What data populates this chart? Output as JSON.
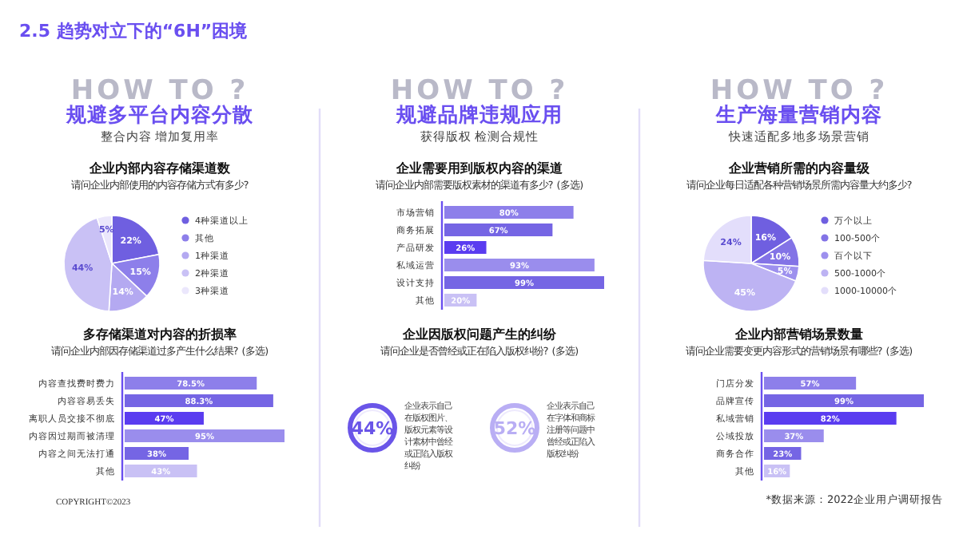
{
  "chart_data": [
    {
      "type": "pie",
      "title": "企业内部内容存储渠道数",
      "subtitle": "请问企业内部使用的内容存储方式有多少?",
      "annotations": [
        "HOW TO ?",
        "规避多平台内容分散",
        "整合内容 增加复用率",
        "2.5 趋势对立下的“6H”困境"
      ],
      "categories": [
        "4种渠道以上",
        "其他",
        "1种渠道",
        "2种渠道",
        "3种渠道"
      ],
      "values": [
        22,
        15,
        14,
        44,
        5
      ],
      "value_labels": [
        "22%",
        "15%",
        "14%",
        "44%",
        "5%"
      ],
      "colors": [
        "#6f5fe0",
        "#8d7fea",
        "#b4a9f1",
        "#c9c1f5",
        "#ebe7fc"
      ],
      "legend": "right"
    },
    {
      "type": "bar",
      "orientation": "horizontal",
      "title": "多存储渠道对内容的折损率",
      "subtitle": "请问企业内部因存储渠道过多产生什么结果? (多选)",
      "annotations": [
        "COPYRIGHT©2023"
      ],
      "categories": [
        "内容查找费时费力",
        "内容容易丢失",
        "离职人员交接不彻底",
        "内容因过期而被清理",
        "内容之间无法打通",
        "其他"
      ],
      "values": [
        78.5,
        88.3,
        47,
        95,
        38,
        43
      ],
      "value_labels": [
        "78.5%",
        "88.3%",
        "47%",
        "95%",
        "38%",
        "43%"
      ],
      "colors": [
        "#8d7fea",
        "#7565e4",
        "#5a3cf0",
        "#9a8ded",
        "#7565e4",
        "#c9c1f5"
      ]
    },
    {
      "type": "bar",
      "orientation": "horizontal",
      "title": "企业需要用到版权内容的渠道",
      "subtitle": "请问企业内部需要版权素材的渠道有多少? (多选)",
      "annotations": [
        "HOW TO ?",
        "规避品牌违规应用",
        "获得版权 检测合规性"
      ],
      "categories": [
        "市场营销",
        "商务拓展",
        "产品研发",
        "私域运营",
        "设计支持",
        "其他"
      ],
      "values": [
        80,
        67,
        26,
        93,
        99,
        20
      ],
      "value_labels": [
        "80%",
        "67%",
        "26%",
        "93%",
        "99%",
        "20%"
      ],
      "colors": [
        "#8d7fea",
        "#7565e4",
        "#5a3cf0",
        "#9a8ded",
        "#7565e4",
        "#c9c1f5"
      ]
    },
    {
      "type": "other",
      "title": "企业因版权问题产生的纠纷",
      "subtitle": "请问企业是否曾经或正在陷入版权纠纷? (多选)",
      "categories": [
        "企业表示自己在版权图片、版权元素等设计素材中曾经或正陷入版权纠纷",
        "企业表示自己在字体和商标注册等问题中曾经或正陷入版权纠纷"
      ],
      "values": [
        44,
        52
      ],
      "value_labels": [
        "44%",
        "52%"
      ],
      "colors": [
        "#6a55e8",
        "#b9aef4"
      ]
    },
    {
      "type": "pie",
      "title": "企业营销所需的内容量级",
      "subtitle": "请问企业每日适配各种营销场景所需内容量大约多少?",
      "annotations": [
        "HOW TO ?",
        "生产海量营销内容",
        "快速适配多地多场景营销"
      ],
      "categories": [
        "万个以上",
        "100-500个",
        "百个以下",
        "500-1000个",
        "1000-10000个"
      ],
      "values": [
        16,
        10,
        5,
        45,
        24
      ],
      "value_labels": [
        "16%",
        "10%",
        "5%",
        "45%",
        "24%"
      ],
      "colors": [
        "#6f5fe0",
        "#8373e6",
        "#9d90ee",
        "#bdb3f3",
        "#e3defb"
      ],
      "legend": "right"
    },
    {
      "type": "bar",
      "orientation": "horizontal",
      "title": "企业内部营销场景数量",
      "subtitle": "请问企业需要变更内容形式的营销场景有哪些? (多选)",
      "annotations": [
        "*数据来源：2022企业用户调研报告"
      ],
      "categories": [
        "门店分发",
        "品牌宣传",
        "私域营销",
        "公域投放",
        "商务合作",
        "其他"
      ],
      "values": [
        57,
        99,
        82,
        37,
        23,
        16
      ],
      "value_labels": [
        "57%",
        "99%",
        "82%",
        "37%",
        "23%",
        "16%"
      ],
      "colors": [
        "#8d7fea",
        "#7565e4",
        "#5a3cf0",
        "#9a8ded",
        "#7565e4",
        "#c9c1f5"
      ]
    }
  ]
}
